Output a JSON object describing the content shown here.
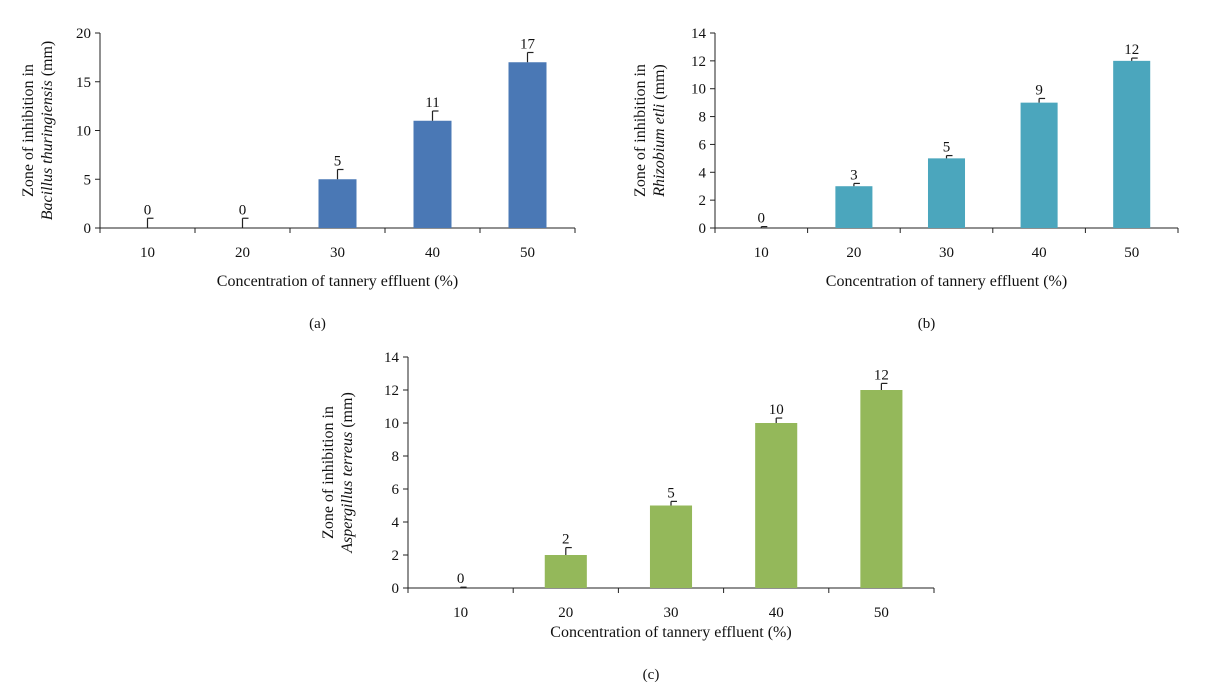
{
  "chart_data": [
    {
      "type": "bar",
      "panel_label": "(a)",
      "xlabel": "Concentration of tannery effluent (%)",
      "ylabel_prefix": "Zone of inhibition in",
      "ylabel_organism": "Bacillus thuringiensis",
      "ylabel_unit": " (mm)",
      "categories": [
        "10",
        "20",
        "30",
        "40",
        "50"
      ],
      "values": [
        0,
        0,
        5,
        11,
        17
      ],
      "error": [
        1,
        1,
        1,
        1,
        1
      ],
      "data_labels": [
        "0",
        "0",
        "5",
        "11",
        "17"
      ],
      "ylim": [
        0,
        20
      ],
      "yticks": [
        "0",
        "5",
        "10",
        "15",
        "20"
      ],
      "color": "#4a78b5",
      "grid": false,
      "legend": "none"
    },
    {
      "type": "bar",
      "panel_label": "(b)",
      "xlabel": "Concentration of tannery effluent (%)",
      "ylabel_prefix": "Zone of inhibition in",
      "ylabel_organism": "Rhizobium etli",
      "ylabel_unit": " (mm)",
      "categories": [
        "10",
        "20",
        "30",
        "40",
        "50"
      ],
      "values": [
        0,
        3,
        5,
        9,
        12
      ],
      "error": [
        0.1,
        0.2,
        0.2,
        0.3,
        0.2
      ],
      "data_labels": [
        "0",
        "3",
        "5",
        "9",
        "12"
      ],
      "ylim": [
        0,
        14
      ],
      "yticks": [
        "0",
        "2",
        "4",
        "6",
        "8",
        "10",
        "12",
        "14"
      ],
      "color": "#4ba6bd",
      "grid": false,
      "legend": "none"
    },
    {
      "type": "bar",
      "panel_label": "(c)",
      "xlabel": "Concentration of tannery effluent (%)",
      "ylabel_prefix": "Zone of inhibition in",
      "ylabel_organism": "Aspergillus terreus",
      "ylabel_unit": " (mm)",
      "categories": [
        "10",
        "20",
        "30",
        "40",
        "50"
      ],
      "values": [
        0,
        2,
        5,
        10,
        12
      ],
      "error": [
        0.05,
        0.45,
        0.25,
        0.3,
        0.4
      ],
      "data_labels": [
        "0",
        "2",
        "5",
        "10",
        "12"
      ],
      "ylim": [
        0,
        14
      ],
      "yticks": [
        "0",
        "2",
        "4",
        "6",
        "8",
        "10",
        "12",
        "14"
      ],
      "color": "#94b85a",
      "grid": false,
      "legend": "none"
    }
  ]
}
